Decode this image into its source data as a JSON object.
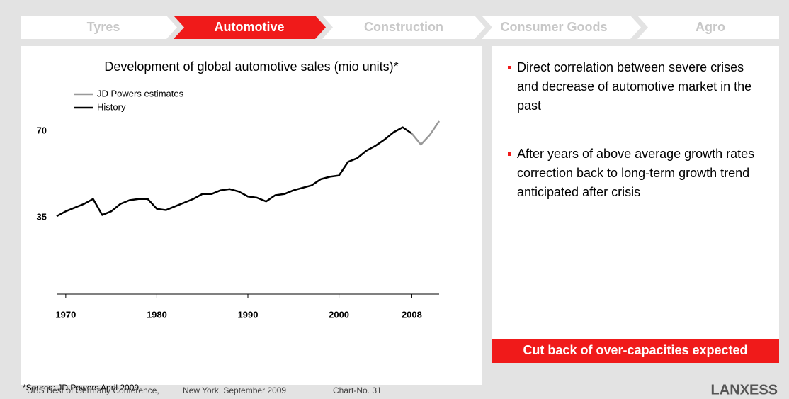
{
  "tabs": [
    "Tyres",
    "Automotive",
    "Construction",
    "Consumer Goods",
    "Agro"
  ],
  "chart_data": {
    "type": "line",
    "title": "Development of global automotive sales (mio units)*",
    "xlim": [
      1969,
      2011
    ],
    "xticks": [
      1970,
      1980,
      1990,
      2000,
      2008
    ],
    "ylim": [
      4,
      80
    ],
    "yticks": [
      35,
      70
    ],
    "grid": false,
    "series": [
      {
        "name": "JD Powers estimates",
        "color": "#999999",
        "x": [
          2008,
          2009,
          2010,
          2011
        ],
        "values": [
          69,
          64.5,
          68.5,
          74
        ]
      },
      {
        "name": "History",
        "color": "#000000",
        "x": [
          1969,
          1970,
          1971,
          1972,
          1973,
          1974,
          1975,
          1976,
          1977,
          1978,
          1979,
          1980,
          1981,
          1982,
          1983,
          1984,
          1985,
          1986,
          1987,
          1988,
          1989,
          1990,
          1991,
          1992,
          1993,
          1994,
          1995,
          1996,
          1997,
          1998,
          1999,
          2000,
          2001,
          2002,
          2003,
          2004,
          2005,
          2006,
          2007,
          2008
        ],
        "values": [
          35.5,
          37.5,
          39,
          40.5,
          42.5,
          36,
          37.5,
          40.5,
          42,
          42.5,
          42.5,
          38.5,
          38,
          39.5,
          41,
          42.5,
          44.5,
          44.5,
          46,
          46.5,
          45.5,
          43.5,
          43,
          41.5,
          44,
          44.5,
          46,
          47,
          48,
          50.5,
          51.5,
          52,
          57.5,
          59,
          62,
          64,
          66.5,
          69.5,
          71.5,
          69
        ]
      }
    ]
  },
  "source": "*Source: JD Powers April 2009",
  "bullets": [
    "Direct correlation between severe crises and decrease of automotive market in the past",
    "After years of above average growth rates correction back to long-term growth trend anticipated after crisis"
  ],
  "conclusion": "Cut back of over-capacities expected",
  "footer": {
    "event": "UBS Best of Germany Conference,",
    "place": "New York, September 2009",
    "chart_no": "Chart-No. 31",
    "logo": "LANXESS"
  }
}
